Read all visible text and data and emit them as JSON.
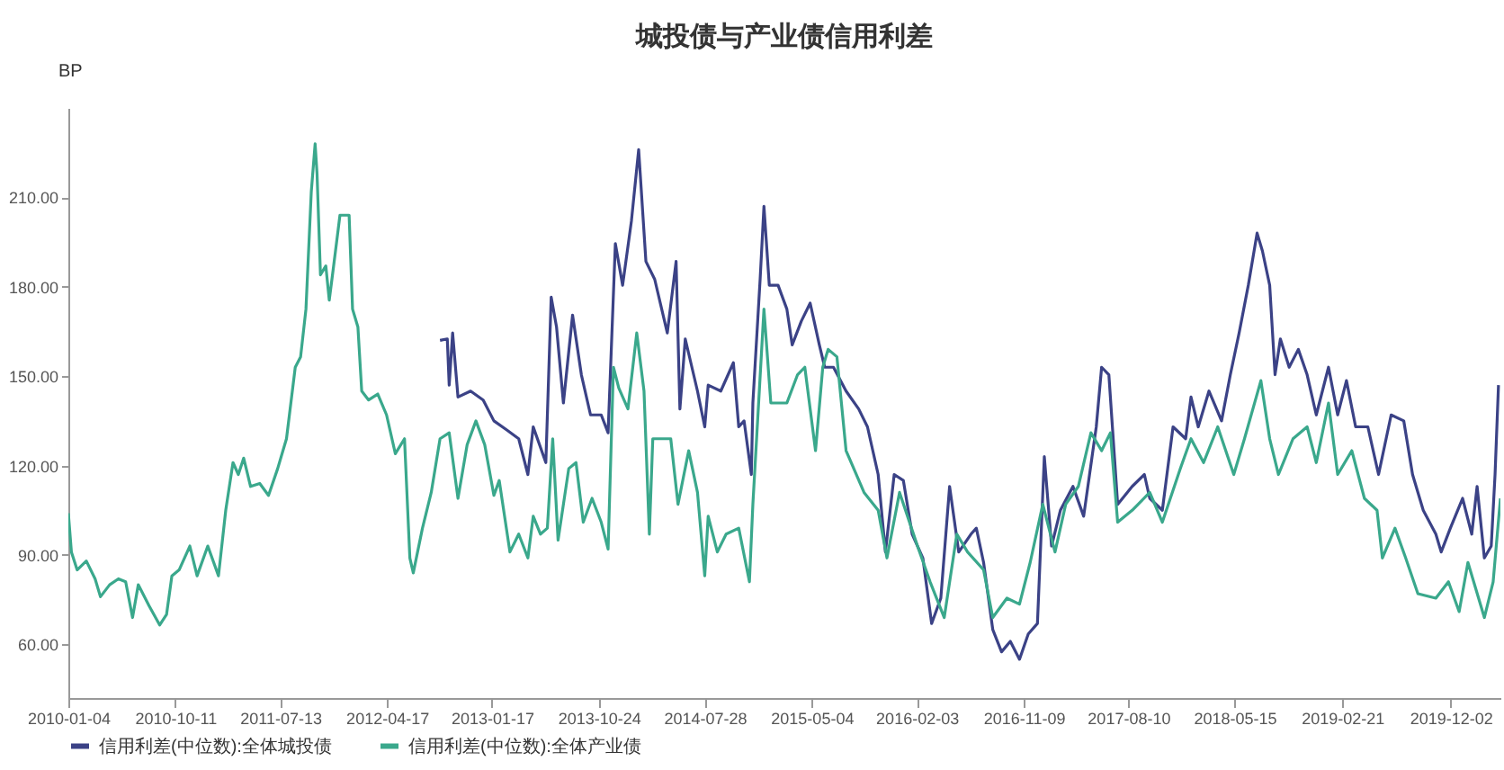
{
  "chart_data": {
    "type": "line",
    "title": "城投债与产业债信用利差",
    "ylabel": "BP",
    "legend": "bottom",
    "xlim": [
      "2010-01-04",
      "2020-04-10"
    ],
    "xticks": [
      "2010-01-04",
      "2010-10-11",
      "2011-07-13",
      "2012-04-17",
      "2013-01-17",
      "2013-10-24",
      "2014-07-28",
      "2015-05-04",
      "2016-02-03",
      "2016-11-09",
      "2017-08-10",
      "2018-05-15",
      "2019-02-21",
      "2019-12-02"
    ],
    "ylim": [
      42,
      240
    ],
    "yticks": [
      {
        "value": 60,
        "label": "60.00"
      },
      {
        "value": 90,
        "label": "90.00"
      },
      {
        "value": 120,
        "label": "120.00"
      },
      {
        "value": 150,
        "label": "150.00"
      },
      {
        "value": 180,
        "label": "180.00"
      },
      {
        "value": 210,
        "label": "210.00"
      }
    ],
    "series": [
      {
        "name": "信用利差(中位数):全体城投债",
        "color": "#3b4286",
        "x": [
          "2012-09-03",
          "2012-09-22",
          "2012-09-27",
          "2012-10-06",
          "2012-10-20",
          "2012-11-22",
          "2012-12-25",
          "2013-01-22",
          "2013-02-24",
          "2013-03-28",
          "2013-04-21",
          "2013-05-05",
          "2013-06-07",
          "2013-06-21",
          "2013-07-05",
          "2013-07-23",
          "2013-08-16",
          "2013-09-08",
          "2013-10-02",
          "2013-10-30",
          "2013-11-17",
          "2013-12-06",
          "2013-12-25",
          "2014-01-17",
          "2014-02-05",
          "2014-02-24",
          "2014-03-19",
          "2014-04-21",
          "2014-05-14",
          "2014-05-24",
          "2014-06-07",
          "2014-07-09",
          "2014-07-28",
          "2014-08-06",
          "2014-09-08",
          "2014-10-11",
          "2014-10-25",
          "2014-11-08",
          "2014-11-27",
          "2014-12-01",
          "2014-12-20",
          "2014-12-30",
          "2015-01-13",
          "2015-02-05",
          "2015-02-28",
          "2015-03-14",
          "2015-04-07",
          "2015-04-30",
          "2015-05-24",
          "2015-06-07",
          "2015-06-30",
          "2015-08-02",
          "2015-09-04",
          "2015-09-27",
          "2015-10-11",
          "2015-10-25",
          "2015-11-13",
          "2015-12-06",
          "2015-12-30",
          "2016-01-22",
          "2016-02-19",
          "2016-03-13",
          "2016-04-06",
          "2016-04-29",
          "2016-05-23",
          "2016-06-24",
          "2016-07-08",
          "2016-07-27",
          "2016-08-20",
          "2016-09-12",
          "2016-10-05",
          "2016-10-29",
          "2016-11-21",
          "2016-12-15",
          "2017-01-02",
          "2017-01-21",
          "2017-02-13",
          "2017-03-18",
          "2017-04-15",
          "2017-05-18",
          "2017-06-01",
          "2017-06-20",
          "2017-07-13",
          "2017-08-20",
          "2017-09-21",
          "2017-10-05",
          "2017-11-07",
          "2017-12-05",
          "2018-01-07",
          "2018-01-21",
          "2018-02-09",
          "2018-03-09",
          "2018-04-11",
          "2018-05-04",
          "2018-05-27",
          "2018-06-20",
          "2018-07-13",
          "2018-07-27",
          "2018-08-15",
          "2018-08-29",
          "2018-09-12",
          "2018-10-05",
          "2018-10-29",
          "2018-11-21",
          "2018-12-15",
          "2019-01-16",
          "2019-02-09",
          "2019-03-04",
          "2019-03-28",
          "2019-04-29",
          "2019-05-27",
          "2019-06-29",
          "2019-08-01",
          "2019-08-24",
          "2019-09-21",
          "2019-10-24",
          "2019-11-07",
          "2019-12-01",
          "2020-01-02",
          "2020-01-26",
          "2020-02-09",
          "2020-02-28",
          "2020-03-17",
          "2020-03-27",
          "2020-04-05"
        ],
        "values": [
          162,
          162.5,
          147,
          164.5,
          143,
          145,
          142,
          135,
          132,
          129,
          117,
          133,
          121,
          176.5,
          166.5,
          141,
          170.5,
          150.5,
          137,
          137,
          131,
          194.5,
          180.5,
          202,
          226,
          188.5,
          182.5,
          164.5,
          188.5,
          139,
          162.5,
          145,
          133,
          147,
          145,
          154.5,
          133,
          135,
          117,
          141,
          182.5,
          207,
          180.5,
          180.5,
          172.5,
          160.5,
          168.5,
          174.5,
          160.5,
          153,
          153,
          145,
          139,
          133,
          125,
          117,
          91,
          117,
          115,
          97,
          89,
          67,
          75.5,
          113,
          91,
          97,
          99,
          87.5,
          65,
          57.5,
          61,
          55,
          63.5,
          67,
          123,
          93,
          105,
          113,
          103,
          133,
          153,
          150.5,
          107,
          113,
          117,
          109,
          105,
          133,
          129,
          143,
          133,
          145,
          135,
          150.5,
          164.5,
          180.5,
          198,
          192,
          180.5,
          150.5,
          162.5,
          153,
          159,
          150.5,
          137,
          153,
          137,
          148.5,
          133,
          133,
          117,
          137,
          135,
          117,
          105,
          97,
          91,
          99,
          109,
          97,
          113,
          89,
          93,
          117,
          147
        ]
      },
      {
        "name": "信用利差(中位数):全体产业债",
        "color": "#3aa88c",
        "x": [
          "2010-01-04",
          "2010-01-12",
          "2010-01-27",
          "2010-02-20",
          "2010-03-15",
          "2010-03-29",
          "2010-04-22",
          "2010-05-15",
          "2010-06-03",
          "2010-06-21",
          "2010-07-06",
          "2010-08-03",
          "2010-08-31",
          "2010-09-18",
          "2010-10-02",
          "2010-10-21",
          "2010-11-18",
          "2010-12-07",
          "2011-01-04",
          "2011-02-01",
          "2011-02-20",
          "2011-03-11",
          "2011-03-25",
          "2011-04-08",
          "2011-04-26",
          "2011-05-20",
          "2011-06-12",
          "2011-07-06",
          "2011-07-29",
          "2011-08-21",
          "2011-09-04",
          "2011-09-18",
          "2011-10-02",
          "2011-10-12",
          "2011-10-17",
          "2011-10-26",
          "2011-11-09",
          "2011-11-18",
          "2011-11-28",
          "2011-12-16",
          "2012-01-09",
          "2012-01-18",
          "2012-02-01",
          "2012-02-11",
          "2012-02-29",
          "2012-03-24",
          "2012-04-16",
          "2012-05-09",
          "2012-06-02",
          "2012-06-16",
          "2012-06-25",
          "2012-07-19",
          "2012-08-11",
          "2012-09-03",
          "2012-09-27",
          "2012-10-20",
          "2012-11-13",
          "2012-12-06",
          "2012-12-29",
          "2013-01-22",
          "2013-02-05",
          "2013-03-05",
          "2013-03-28",
          "2013-04-21",
          "2013-05-05",
          "2013-05-24",
          "2013-06-11",
          "2013-06-25",
          "2013-07-09",
          "2013-08-06",
          "2013-08-25",
          "2013-09-13",
          "2013-10-06",
          "2013-10-30",
          "2013-11-17",
          "2013-12-01",
          "2013-12-15",
          "2014-01-08",
          "2014-01-31",
          "2014-02-19",
          "2014-03-05",
          "2014-03-14",
          "2014-04-07",
          "2014-04-30",
          "2014-05-19",
          "2014-06-16",
          "2014-07-09",
          "2014-07-28",
          "2014-08-06",
          "2014-08-30",
          "2014-09-22",
          "2014-10-25",
          "2014-11-22",
          "2014-12-01",
          "2014-12-30",
          "2015-01-17",
          "2015-02-28",
          "2015-03-28",
          "2015-04-16",
          "2015-05-14",
          "2015-06-02",
          "2015-06-16",
          "2015-07-09",
          "2015-08-02",
          "2015-09-18",
          "2015-10-25",
          "2015-11-17",
          "2015-12-20",
          "2016-02-05",
          "2016-03-09",
          "2016-04-15",
          "2016-05-18",
          "2016-06-15",
          "2016-07-27",
          "2016-08-20",
          "2016-09-26",
          "2016-10-29",
          "2016-11-26",
          "2016-12-29",
          "2017-01-30",
          "2017-02-27",
          "2017-04-01",
          "2017-05-04",
          "2017-06-01",
          "2017-06-24",
          "2017-07-13",
          "2017-08-20",
          "2017-10-05",
          "2017-11-07",
          "2017-12-24",
          "2018-01-21",
          "2018-02-23",
          "2018-04-01",
          "2018-05-13",
          "2018-06-10",
          "2018-07-23",
          "2018-08-15",
          "2018-09-07",
          "2018-10-15",
          "2018-11-21",
          "2018-12-15",
          "2019-01-16",
          "2019-02-09",
          "2019-03-18",
          "2019-04-20",
          "2019-05-23",
          "2019-06-06",
          "2019-07-09",
          "2019-08-06",
          "2019-09-07",
          "2019-10-24",
          "2019-11-26",
          "2019-12-24",
          "2020-01-16",
          "2020-02-28",
          "2020-03-22",
          "2020-04-10"
        ],
        "values": [
          104,
          91,
          85,
          88,
          82,
          76,
          80,
          82,
          81,
          69,
          80,
          73,
          66.5,
          70,
          83,
          85,
          93,
          83,
          93,
          83,
          105,
          121,
          117,
          122.5,
          113,
          114,
          110,
          119,
          129,
          153,
          156.5,
          172.5,
          212,
          228,
          218,
          184,
          187,
          175.5,
          185.5,
          204,
          204,
          172.5,
          166.5,
          145,
          142,
          144,
          137,
          124,
          129,
          89,
          84,
          99,
          111,
          129,
          131,
          109,
          127,
          135,
          127,
          110,
          115,
          91,
          97,
          89,
          103,
          97,
          99,
          129,
          95,
          119,
          121,
          101,
          109,
          101,
          92,
          153,
          146,
          139,
          164.5,
          145,
          97,
          129,
          129,
          129,
          107,
          125,
          111,
          83,
          103,
          91,
          97,
          99,
          81,
          107,
          172.5,
          141,
          141,
          150.5,
          153,
          125,
          153,
          159,
          156.5,
          125,
          111,
          105,
          89,
          111,
          93,
          81,
          69,
          97,
          91,
          85,
          69,
          75.5,
          73.5,
          87.5,
          107,
          91,
          107,
          113,
          131,
          125,
          131,
          101,
          105,
          111,
          101,
          119,
          129,
          121,
          133,
          117,
          129,
          148.5,
          129,
          117,
          129,
          133,
          121,
          141,
          117,
          125,
          109,
          105,
          89,
          99,
          89,
          77,
          75.5,
          81,
          71,
          87.5,
          69,
          81,
          109
        ]
      }
    ]
  }
}
